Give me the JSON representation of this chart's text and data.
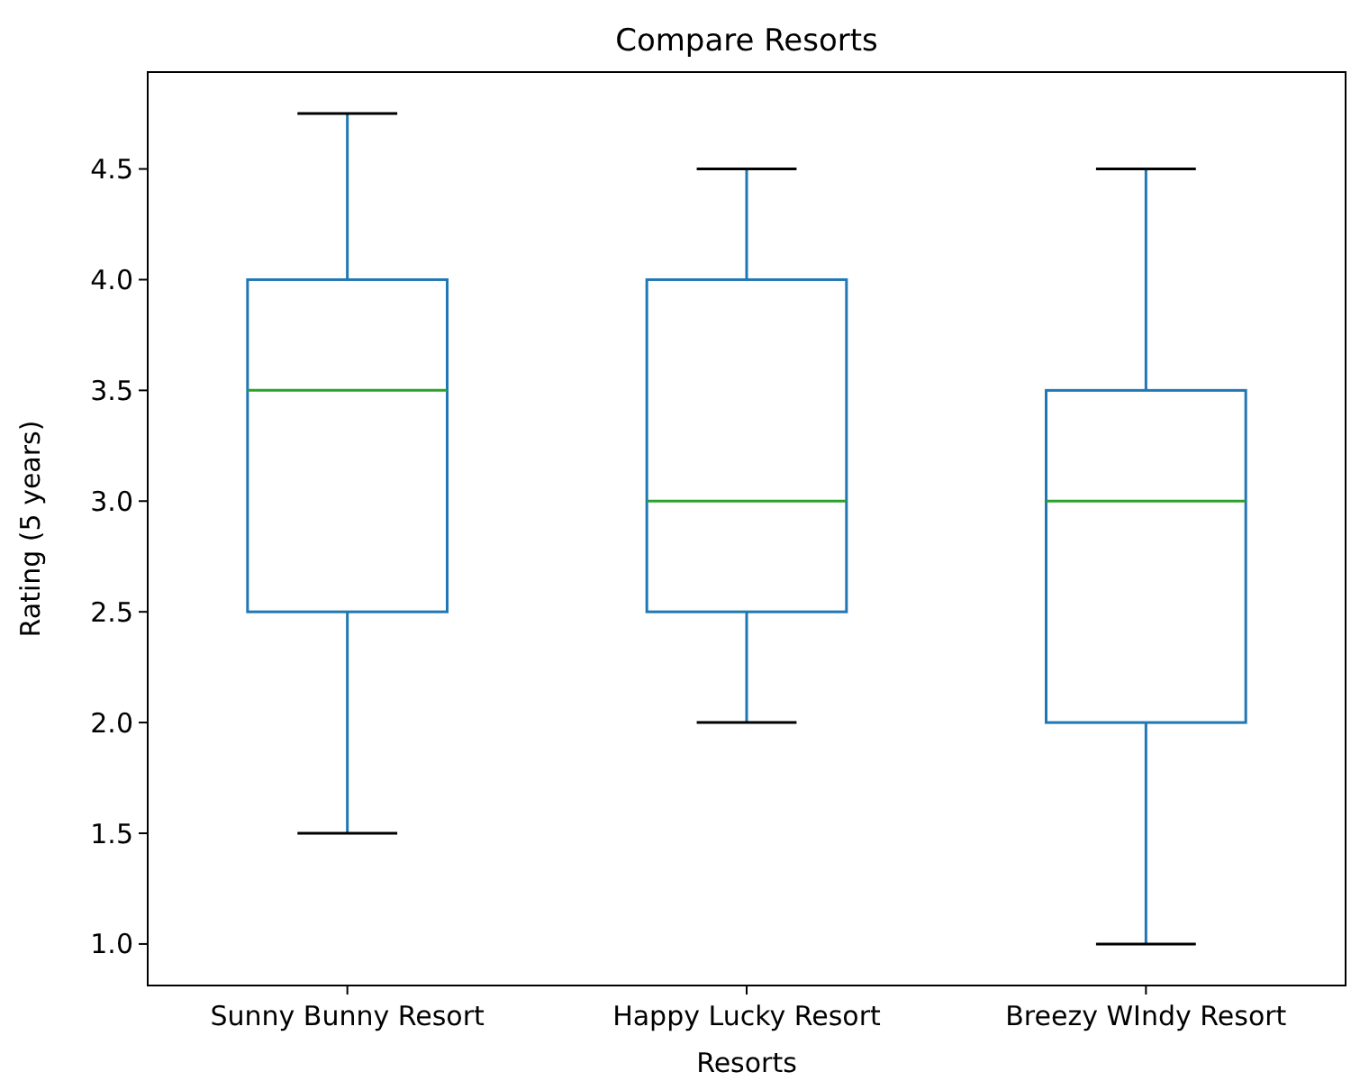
{
  "chart_data": {
    "type": "box",
    "title": "Compare Resorts",
    "xlabel": "Resorts",
    "ylabel": "Rating (5 years)",
    "categories": [
      "Sunny Bunny Resort",
      "Happy Lucky Resort",
      "Breezy WIndy Resort"
    ],
    "series": [
      {
        "color": "#1f77b4",
        "boxes": [
          {
            "low": 1.5,
            "q1": 2.5,
            "median": 3.5,
            "q3": 4.0,
            "high": 4.75
          },
          {
            "low": 2.0,
            "q1": 2.5,
            "median": 3.0,
            "q3": 4.0,
            "high": 4.5
          },
          {
            "low": 1.0,
            "q1": 2.0,
            "median": 3.0,
            "q3": 3.5,
            "high": 4.5
          }
        ]
      }
    ],
    "ylim": [
      0.8125,
      4.9375
    ],
    "yticks": [
      {
        "value": 1,
        "label": "1.0"
      },
      1.5,
      {
        "value": 2,
        "label": "2.0"
      },
      2.5,
      {
        "value": 3,
        "label": "3.0"
      },
      3.5,
      {
        "value": 4,
        "label": "4.0"
      },
      4.5
    ]
  }
}
